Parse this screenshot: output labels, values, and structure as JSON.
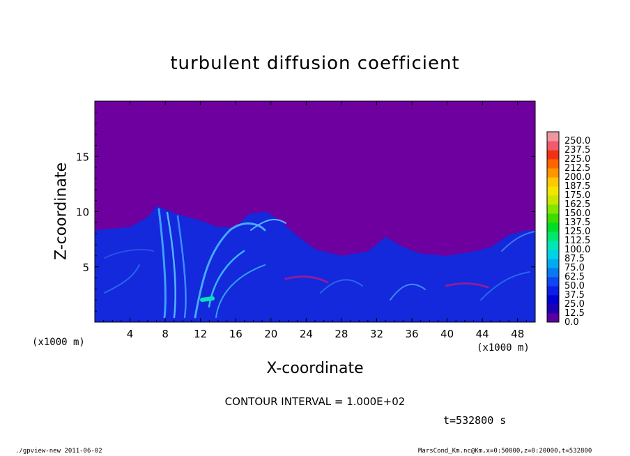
{
  "chart_data": {
    "type": "heatmap",
    "title": "turbulent diffusion coefficient",
    "xlabel": "X-coordinate",
    "ylabel": "Z-coordinate",
    "x_unit_label": "(x1000 m)",
    "xlim": [
      0,
      50
    ],
    "ylim": [
      0,
      20
    ],
    "x_ticks": [
      "4",
      "8",
      "12",
      "16",
      "20",
      "24",
      "28",
      "32",
      "36",
      "40",
      "44",
      "48"
    ],
    "x_tick_values": [
      4,
      8,
      12,
      16,
      20,
      24,
      28,
      32,
      36,
      40,
      44,
      48
    ],
    "y_ticks": [
      "5",
      "10",
      "15"
    ],
    "y_tick_values": [
      5,
      10,
      15
    ],
    "contour_interval_text": "CONTOUR INTERVAL = 1.000E+02",
    "time_text": "t=532800 s",
    "colorbar": {
      "levels": [
        "0.0",
        "12.5",
        "25.0",
        "37.5",
        "50.0",
        "62.5",
        "75.0",
        "87.5",
        "100.0",
        "112.5",
        "125.0",
        "137.5",
        "150.0",
        "162.5",
        "175.0",
        "187.5",
        "200.0",
        "212.5",
        "225.0",
        "237.5",
        "250.0"
      ],
      "colors": [
        "#5a00a0",
        "#1e00b4",
        "#0000d2",
        "#0a1ee6",
        "#0f46f0",
        "#0a78f0",
        "#00aaf0",
        "#00d2e6",
        "#00e6b4",
        "#00e66e",
        "#00dc28",
        "#3cdc00",
        "#82e600",
        "#c8e600",
        "#f0e600",
        "#ffc800",
        "#ff9600",
        "#ff6400",
        "#f03214",
        "#f05a6e",
        "#f096a0"
      ]
    },
    "background_color": "#6e00a0",
    "turbulent_layer_top_z": [
      [
        0,
        8.3
      ],
      [
        4,
        8.6
      ],
      [
        6,
        9.5
      ],
      [
        7,
        10.5
      ],
      [
        8,
        10.2
      ],
      [
        10,
        9.6
      ],
      [
        12,
        9.2
      ],
      [
        14,
        8.6
      ],
      [
        16,
        8.6
      ],
      [
        17.5,
        9.8
      ],
      [
        19.5,
        10.0
      ],
      [
        21,
        9.2
      ],
      [
        23,
        7.8
      ],
      [
        25,
        6.6
      ],
      [
        28,
        6.0
      ],
      [
        31,
        6.4
      ],
      [
        33,
        7.7
      ],
      [
        35,
        6.8
      ],
      [
        37,
        6.2
      ],
      [
        40,
        6.0
      ],
      [
        43,
        6.4
      ],
      [
        45,
        6.8
      ],
      [
        47,
        7.9
      ],
      [
        49,
        8.3
      ],
      [
        50,
        8.3
      ]
    ]
  },
  "footer": {
    "left": "./gpview-new  2011-06-02",
    "right": "MarsCond_Km.nc@Km,x=0:50000,z=0:20000,t=532800"
  }
}
